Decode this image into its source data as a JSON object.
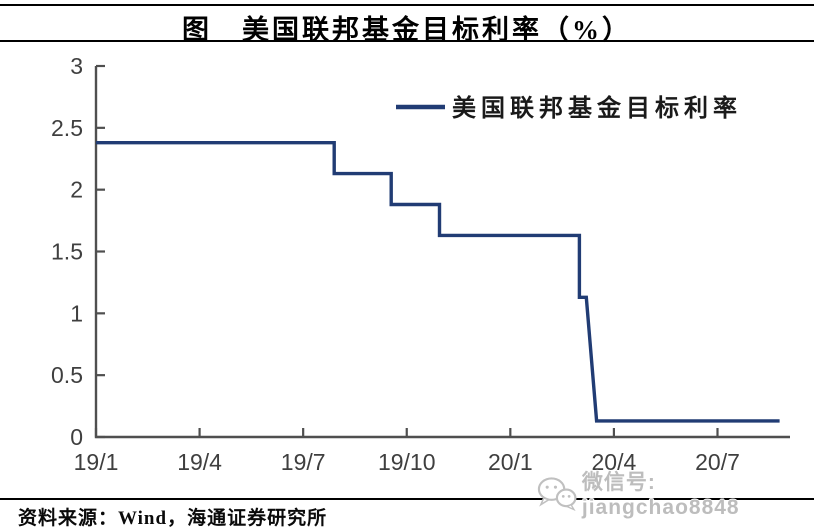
{
  "header": {
    "title": "图　美国联邦基金目标利率（%）"
  },
  "footer": {
    "source": "资料来源：Wind，海通证券研究所"
  },
  "watermark": {
    "icon": "wechat-icon",
    "label": "微信号: jiangchao8848"
  },
  "colors": {
    "line": "#213C74",
    "axis": "#4F4F4F",
    "tick_label": "#3F3F3F",
    "title_text": "#000000",
    "watermark": "#BDBDBD",
    "legend_text": "#1A1A1A"
  },
  "chart_data": {
    "type": "line",
    "step": true,
    "title": "美国联邦基金目标利率（%）",
    "xlabel": "",
    "ylabel": "",
    "grid": false,
    "x_unit": "months since 2019-01 (label format YY/M)",
    "xlim_months": [
      0,
      20.1
    ],
    "ylim": [
      0,
      3
    ],
    "legend": {
      "label": "美国联邦基金目标利率",
      "position": "top-right"
    },
    "xticks": [
      {
        "m": 0,
        "label": "19/1"
      },
      {
        "m": 3,
        "label": "19/4"
      },
      {
        "m": 6,
        "label": "19/7"
      },
      {
        "m": 9,
        "label": "19/10"
      },
      {
        "m": 12,
        "label": "20/1"
      },
      {
        "m": 15,
        "label": "20/4"
      },
      {
        "m": 18,
        "label": "20/7"
      }
    ],
    "yticks": [
      {
        "v": 0,
        "label": "0"
      },
      {
        "v": 0.5,
        "label": "0.5"
      },
      {
        "v": 1,
        "label": "1"
      },
      {
        "v": 1.5,
        "label": "1.5"
      },
      {
        "v": 2,
        "label": "2"
      },
      {
        "v": 2.5,
        "label": "2.5"
      },
      {
        "v": 3,
        "label": "3"
      }
    ],
    "levels": [
      {
        "from": "2019-01",
        "to": "2019-08",
        "rate": 2.38
      },
      {
        "from": "2019-08",
        "to": "2019-09",
        "rate": 2.13
      },
      {
        "from": "2019-09",
        "to": "2019-11",
        "rate": 1.88
      },
      {
        "from": "2019-11",
        "to": "2020-03",
        "rate": 1.63
      },
      {
        "from": "2020-03",
        "to": "2020-03",
        "rate": 1.13
      },
      {
        "from": "2020-03",
        "to": "2020-09",
        "rate": 0.13
      }
    ],
    "series": [
      {
        "name": "美国联邦基金目标利率",
        "color": "#213C74",
        "points": [
          [
            0,
            2.38
          ],
          [
            6.9,
            2.38
          ],
          [
            6.9,
            2.13
          ],
          [
            8.55,
            2.13
          ],
          [
            8.55,
            1.88
          ],
          [
            9.95,
            1.88
          ],
          [
            9.95,
            1.63
          ],
          [
            14.0,
            1.63
          ],
          [
            14.0,
            1.13
          ],
          [
            14.2,
            1.13
          ],
          [
            14.5,
            0.13
          ],
          [
            19.8,
            0.13
          ]
        ]
      }
    ]
  }
}
